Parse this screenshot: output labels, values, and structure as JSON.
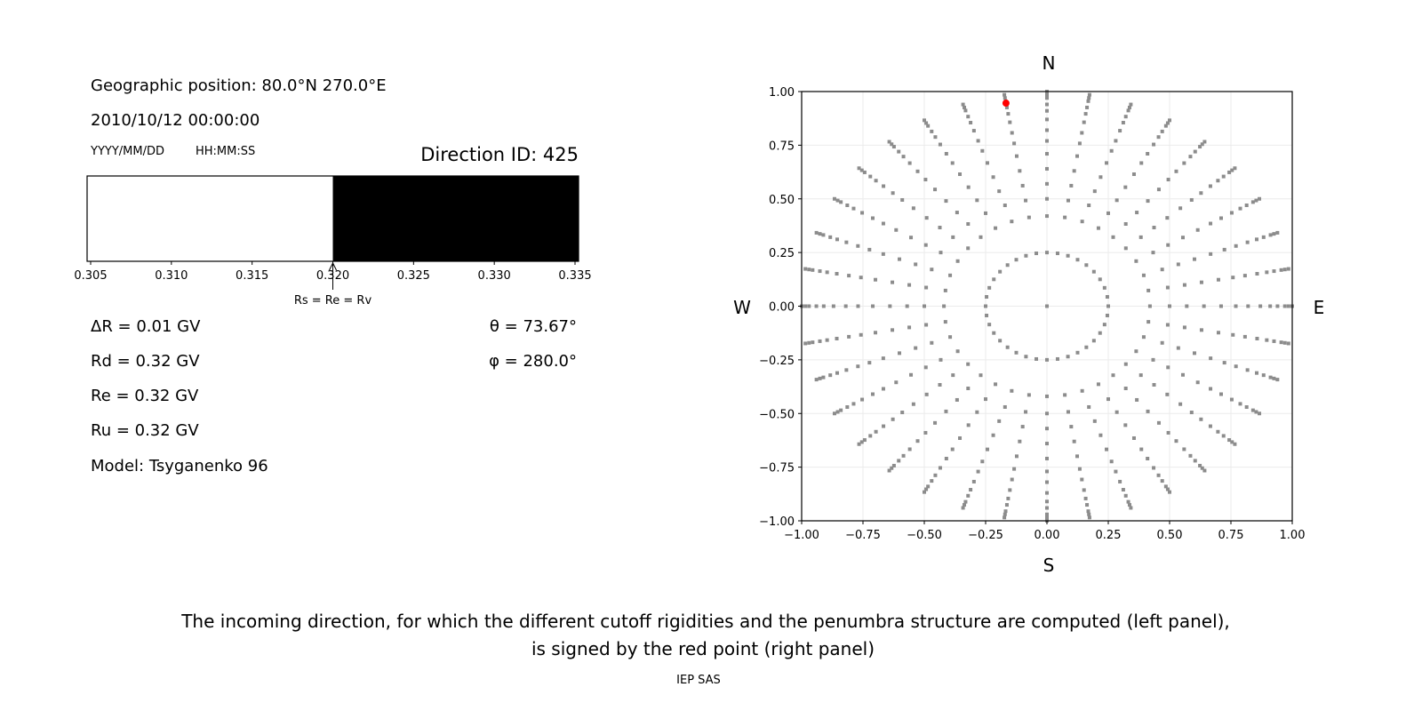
{
  "left_panel": {
    "position_label": "Geographic position: 80.0°N 270.0°E",
    "datetime": "2010/10/12 00:00:00",
    "date_format": "YYYY/MM/DD",
    "time_format": "HH:MM:SS",
    "direction_id": "Direction ID: 425",
    "delta_r": "ΔR = 0.01 GV",
    "rd": "Rd = 0.32 GV",
    "re": "Re = 0.32 GV",
    "ru": "Ru = 0.32 GV",
    "model": "Model: Tsyganenko 96",
    "theta": "θ = 73.67°",
    "phi": "φ = 280.0°"
  },
  "caption": {
    "line1": "The incoming direction, for which the different cutoff rigidities and the penumbra structure are computed (left panel),",
    "line2": "is signed by the red point (right panel)",
    "footer": "IEP SAS"
  },
  "chart_data": [
    {
      "type": "bar",
      "title": "",
      "xlim": [
        0.30478,
        0.33522
      ],
      "xticks": [
        "0.305",
        "0.310",
        "0.315",
        "0.320",
        "0.325",
        "0.330",
        "0.335"
      ],
      "segments": [
        {
          "from": 0.30478,
          "to": 0.32,
          "color": "#ffffff"
        },
        {
          "from": 0.32,
          "to": 0.33522,
          "color": "#000000"
        }
      ],
      "annotation": {
        "text": "Rs = Re = Rv",
        "x": 0.32
      }
    },
    {
      "type": "scatter",
      "xlim": [
        -1.0,
        1.0
      ],
      "ylim": [
        -1.0,
        1.0
      ],
      "grid": true,
      "xticks": [
        "−1.00",
        "−0.75",
        "−0.50",
        "−0.25",
        "0.00",
        "0.25",
        "0.50",
        "0.75",
        "1.00"
      ],
      "yticks": [
        "1.00",
        "0.75",
        "0.50",
        "0.25",
        "0.00",
        "−0.25",
        "−0.50",
        "−0.75",
        "−1.00"
      ],
      "compass": {
        "north": "N",
        "south": "S",
        "west": "W",
        "east": "E"
      },
      "grid_points": {
        "color": "#8c8c8c",
        "center": [
          0,
          0
        ],
        "azimuth_step_deg": 10,
        "radii": [
          0.25,
          0.42,
          0.5,
          0.57,
          0.64,
          0.71,
          0.77,
          0.82,
          0.87,
          0.91,
          0.94,
          0.97,
          0.985,
          1.0
        ]
      },
      "selected_point": {
        "x": -0.167,
        "y": 0.946,
        "color": "#ff0000"
      }
    }
  ]
}
